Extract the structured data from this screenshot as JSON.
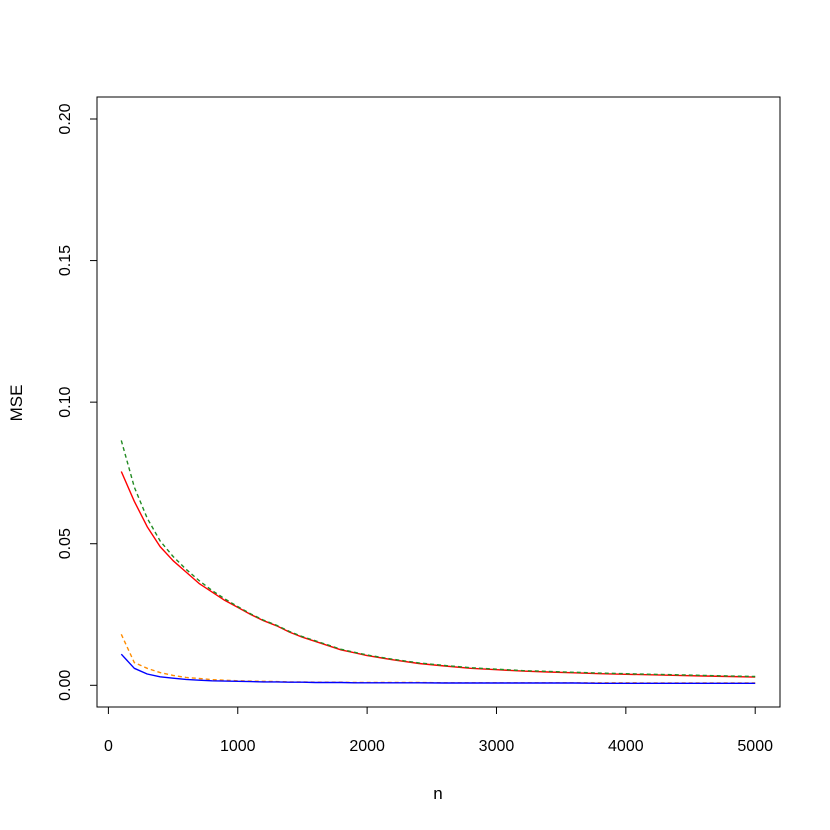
{
  "chart_data": {
    "type": "line",
    "title": "",
    "xlabel": "n",
    "ylabel": "MSE",
    "xlim": [
      0,
      5000
    ],
    "ylim": [
      0,
      0.2
    ],
    "grid": false,
    "x_ticks": [
      0,
      1000,
      2000,
      3000,
      4000,
      5000
    ],
    "x_tick_labels": [
      "0",
      "1000",
      "2000",
      "3000",
      "4000",
      "5000"
    ],
    "y_ticks": [
      0,
      0.05,
      0.1,
      0.15,
      0.2
    ],
    "y_tick_labels": [
      "0.00",
      "0.05",
      "0.10",
      "0.15",
      "0.20"
    ],
    "x": [
      100,
      200,
      300,
      400,
      500,
      600,
      700,
      800,
      900,
      1000,
      1100,
      1200,
      1300,
      1400,
      1500,
      1600,
      1700,
      1800,
      1900,
      2000,
      2200,
      2400,
      2600,
      2800,
      3000,
      3200,
      3400,
      3600,
      3800,
      4000,
      4200,
      4400,
      4600,
      4800,
      5000
    ],
    "series": [
      {
        "color": "#ff0000",
        "line_style": "solid",
        "values": [
          0.0755,
          0.065,
          0.056,
          0.049,
          0.044,
          0.04,
          0.036,
          0.033,
          0.03,
          0.0275,
          0.025,
          0.0228,
          0.021,
          0.0188,
          0.017,
          0.0155,
          0.014,
          0.0125,
          0.0115,
          0.0105,
          0.009,
          0.0077,
          0.0068,
          0.006,
          0.0055,
          0.005,
          0.0047,
          0.0044,
          0.0041,
          0.0039,
          0.0037,
          0.0035,
          0.0033,
          0.0031,
          0.0029
        ]
      },
      {
        "color": "#228b22",
        "line_style": "dashed",
        "values": [
          0.0865,
          0.07,
          0.059,
          0.051,
          0.0455,
          0.041,
          0.037,
          0.0335,
          0.0305,
          0.0278,
          0.0252,
          0.023,
          0.0212,
          0.019,
          0.0172,
          0.0157,
          0.0142,
          0.0127,
          0.0117,
          0.0107,
          0.0092,
          0.0079,
          0.007,
          0.0062,
          0.0057,
          0.0052,
          0.0049,
          0.0046,
          0.0043,
          0.0041,
          0.0039,
          0.0037,
          0.0035,
          0.0033,
          0.0031
        ]
      },
      {
        "color": "#ff8c00",
        "line_style": "dashed",
        "values": [
          0.018,
          0.008,
          0.006,
          0.0045,
          0.0035,
          0.0028,
          0.0024,
          0.002,
          0.0018,
          0.0016,
          0.0015,
          0.0014,
          0.0013,
          0.0012,
          0.0012,
          0.0011,
          0.0011,
          0.0011,
          0.001,
          0.001,
          0.001,
          0.001,
          0.0009,
          0.0009,
          0.0009,
          0.0009,
          0.0009,
          0.0009,
          0.0009,
          0.0009,
          0.0008,
          0.0008,
          0.0008,
          0.0008,
          0.0008
        ]
      },
      {
        "color": "#0000ff",
        "line_style": "solid",
        "values": [
          0.011,
          0.006,
          0.004,
          0.003,
          0.0025,
          0.0021,
          0.0018,
          0.0016,
          0.0015,
          0.0014,
          0.0013,
          0.0012,
          0.0012,
          0.0011,
          0.0011,
          0.001,
          0.001,
          0.001,
          0.0009,
          0.0009,
          0.0009,
          0.0009,
          0.0008,
          0.0008,
          0.0008,
          0.0008,
          0.0008,
          0.0008,
          0.0007,
          0.0007,
          0.0007,
          0.0007,
          0.0007,
          0.0007,
          0.0007
        ]
      }
    ]
  }
}
